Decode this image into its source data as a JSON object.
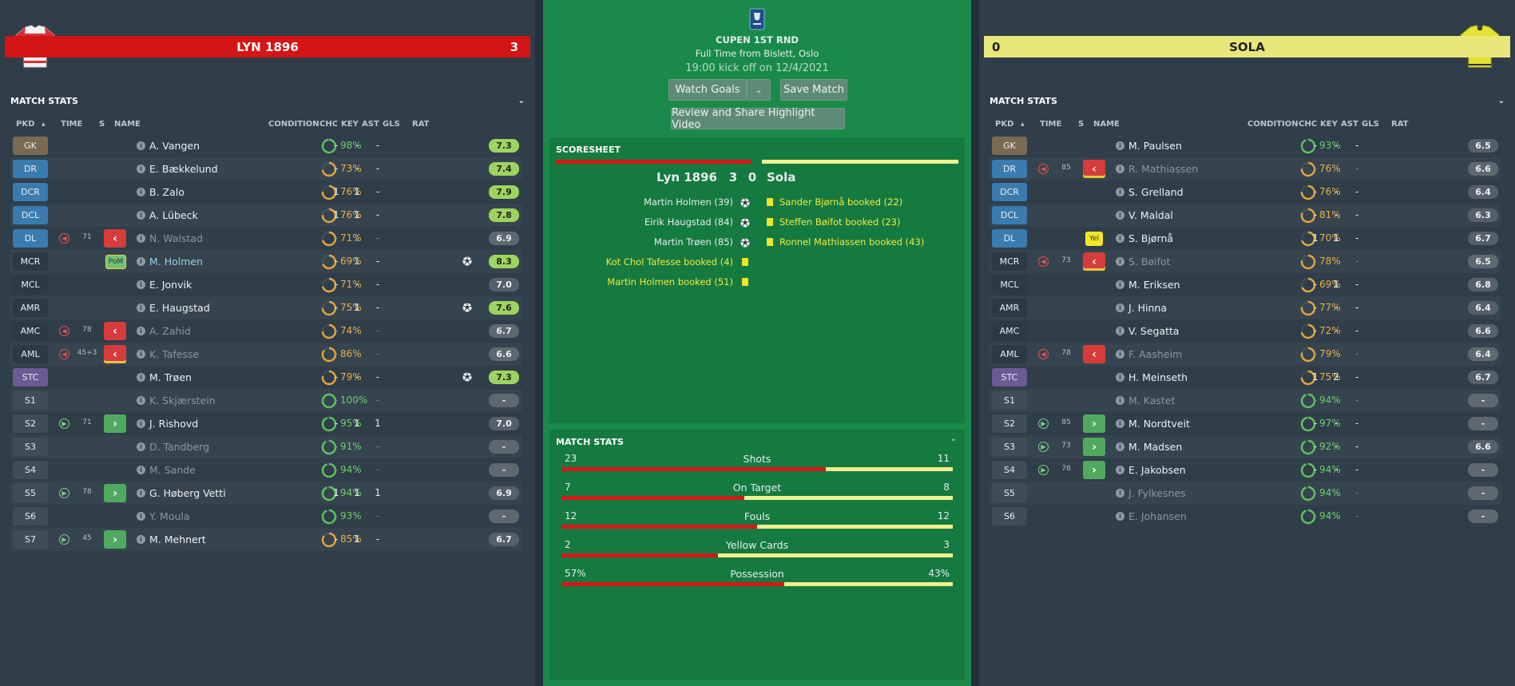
{
  "home": {
    "name": "LYN 1896",
    "score": "3",
    "bar_color": "#d31515",
    "section_title": "MATCH STATS",
    "columns": [
      "PKD",
      "TIME",
      "S",
      "NAME",
      "CONDITION",
      "CHC",
      "KEY",
      "AST",
      "GLS",
      "RAT"
    ],
    "players": [
      {
        "pos": "GK",
        "posColor": "#7b6a52",
        "name": "A. Vangen",
        "cond": "98%",
        "cp": 0.98,
        "chc": "-",
        "key": "-",
        "ast": "-",
        "gls": "",
        "goal": false,
        "rat": "7.3",
        "ratStyle": "green"
      },
      {
        "pos": "DR",
        "posColor": "#3a7bb0",
        "name": "E. Bækkelund",
        "cond": "73%",
        "cp": 0.73,
        "chc": "-",
        "key": "-",
        "ast": "-",
        "gls": "",
        "goal": false,
        "rat": "7.4",
        "ratStyle": "green"
      },
      {
        "pos": "DCR",
        "posColor": "#3a7bb0",
        "name": "B. Zalo",
        "cond": "76%",
        "cp": 0.76,
        "chc": "1",
        "key": "1",
        "ast": "-",
        "gls": "",
        "goal": false,
        "rat": "7.9",
        "ratStyle": "green"
      },
      {
        "pos": "DCL",
        "posColor": "#3a7bb0",
        "name": "A. Lübeck",
        "cond": "76%",
        "cp": 0.76,
        "chc": "1",
        "key": "1",
        "ast": "-",
        "gls": "",
        "goal": false,
        "rat": "7.8",
        "ratStyle": "green"
      },
      {
        "pos": "DL",
        "posColor": "#3a7bb0",
        "sub": "off",
        "time": "71",
        "box": "off",
        "name": "N. Walstad",
        "nameStyle": "dim",
        "cond": "71%",
        "cp": 0.71,
        "chc": "-",
        "key": "1",
        "ast": "-",
        "gls": "",
        "dimStats": true,
        "goal": false,
        "rat": "6.9",
        "ratStyle": "grey"
      },
      {
        "pos": "MCR",
        "posColor": "#2b3a44",
        "box": "pom",
        "boxText": "PoM",
        "name": "M. Holmen",
        "nameStyle": "blue",
        "cond": "69%",
        "cp": 0.69,
        "chc": "-",
        "key": "1",
        "keyBlue": true,
        "ast": "-",
        "gls": "",
        "goal": true,
        "rat": "8.3",
        "ratStyle": "green"
      },
      {
        "pos": "MCL",
        "posColor": "#2b3a44",
        "name": "E. Jonvik",
        "cond": "71%",
        "cp": 0.71,
        "chc": "-",
        "key": "-",
        "ast": "-",
        "gls": "",
        "goal": false,
        "rat": "7.0",
        "ratStyle": "dark"
      },
      {
        "pos": "AMR",
        "posColor": "#2b3a44",
        "name": "E. Haugstad",
        "cond": "75%",
        "cp": 0.75,
        "chc": "-",
        "key": "1",
        "ast": "-",
        "gls": "",
        "goal": true,
        "rat": "7.6",
        "ratStyle": "green"
      },
      {
        "pos": "AMC",
        "posColor": "#2b3a44",
        "sub": "off",
        "time": "78",
        "box": "off",
        "name": "A. Zahid",
        "nameStyle": "dim",
        "cond": "74%",
        "cp": 0.74,
        "chc": "-",
        "key": "-",
        "ast": "-",
        "gls": "",
        "dimStats": true,
        "goal": false,
        "rat": "6.7",
        "ratStyle": "grey"
      },
      {
        "pos": "AML",
        "posColor": "#2b3a44",
        "sub": "off",
        "time": "45+3",
        "box": "off",
        "boxYellow": true,
        "name": "K. Tafesse",
        "nameStyle": "dim",
        "cond": "86%",
        "cp": 0.86,
        "chc": "-",
        "key": "-",
        "ast": "-",
        "gls": "",
        "dimStats": true,
        "goal": false,
        "rat": "6.6",
        "ratStyle": "grey"
      },
      {
        "pos": "STC",
        "posColor": "#6b5a94",
        "name": "M. Trøen",
        "cond": "79%",
        "cp": 0.79,
        "chc": "-",
        "key": "-",
        "ast": "-",
        "gls": "",
        "goal": true,
        "rat": "7.3",
        "ratStyle": "green"
      },
      {
        "pos": "S1",
        "posColor": "#3f4d57",
        "name": "K. Skjærstein",
        "nameStyle": "dim",
        "cond": "100%",
        "cp": 1.0,
        "chc": "-",
        "key": "-",
        "ast": "-",
        "gls": "",
        "dimStats": true,
        "goal": false,
        "rat": "-",
        "ratStyle": "grey"
      },
      {
        "pos": "S2",
        "posColor": "#3f4d57",
        "sub": "on",
        "time": "71",
        "box": "on",
        "name": "J. Rishovd",
        "cond": "95%",
        "cp": 0.95,
        "chc": "-",
        "key": "1",
        "ast": "1",
        "gls": "",
        "goal": false,
        "rat": "7.0",
        "ratStyle": "dark"
      },
      {
        "pos": "S3",
        "posColor": "#3f4d57",
        "name": "D. Tandberg",
        "nameStyle": "dim",
        "cond": "91%",
        "cp": 0.91,
        "chc": "-",
        "key": "-",
        "ast": "-",
        "gls": "",
        "dimStats": true,
        "goal": false,
        "rat": "-",
        "ratStyle": "grey"
      },
      {
        "pos": "S4",
        "posColor": "#3f4d57",
        "name": "M. Sande",
        "nameStyle": "dim",
        "cond": "94%",
        "cp": 0.94,
        "chc": "-",
        "key": "-",
        "ast": "-",
        "gls": "",
        "dimStats": true,
        "goal": false,
        "rat": "-",
        "ratStyle": "grey"
      },
      {
        "pos": "S5",
        "posColor": "#3f4d57",
        "sub": "on",
        "time": "78",
        "box": "on",
        "name": "G. Høberg Vetti",
        "cond": "94%",
        "cp": 0.94,
        "chc": "1",
        "key": "1",
        "ast": "1",
        "gls": "",
        "goal": false,
        "rat": "6.9",
        "ratStyle": "dark"
      },
      {
        "pos": "S6",
        "posColor": "#3f4d57",
        "name": "Y. Moula",
        "nameStyle": "dim",
        "cond": "93%",
        "cp": 0.93,
        "chc": "-",
        "key": "-",
        "ast": "-",
        "gls": "",
        "dimStats": true,
        "goal": false,
        "rat": "-",
        "ratStyle": "grey"
      },
      {
        "pos": "S7",
        "posColor": "#3f4d57",
        "sub": "on",
        "time": "45",
        "box": "on",
        "name": "M. Mehnert",
        "cond": "85%",
        "cp": 0.85,
        "chc": "-",
        "key": "1",
        "ast": "-",
        "gls": "",
        "goal": false,
        "rat": "6.7",
        "ratStyle": "dark"
      }
    ]
  },
  "away": {
    "name": "SOLA",
    "score": "0",
    "bar_color": "#e9e67a",
    "section_title": "MATCH STATS",
    "columns": [
      "PKD",
      "TIME",
      "S",
      "NAME",
      "CONDITION",
      "CHC",
      "KEY",
      "AST",
      "GLS",
      "RAT"
    ],
    "players": [
      {
        "pos": "GK",
        "posColor": "#7b6a52",
        "name": "M. Paulsen",
        "cond": "93%",
        "cp": 0.93,
        "chc": "-",
        "key": "-",
        "ast": "-",
        "gls": "",
        "goal": false,
        "rat": "6.5",
        "ratStyle": "dark"
      },
      {
        "pos": "DR",
        "posColor": "#3a7bb0",
        "sub": "off",
        "time": "85",
        "box": "off",
        "boxYellow": true,
        "name": "R. Mathiassen",
        "nameStyle": "dim",
        "cond": "76%",
        "cp": 0.76,
        "chc": "-",
        "key": "-",
        "ast": "-",
        "gls": "",
        "dimStats": true,
        "goal": false,
        "rat": "6.6",
        "ratStyle": "grey"
      },
      {
        "pos": "DCR",
        "posColor": "#3a7bb0",
        "name": "S. Grelland",
        "cond": "76%",
        "cp": 0.76,
        "chc": "-",
        "key": "-",
        "ast": "-",
        "gls": "",
        "goal": false,
        "rat": "6.4",
        "ratStyle": "dark"
      },
      {
        "pos": "DCL",
        "posColor": "#3a7bb0",
        "name": "V. Maldal",
        "cond": "81%",
        "cp": 0.81,
        "chc": "-",
        "key": "-",
        "ast": "-",
        "gls": "",
        "goal": false,
        "rat": "6.3",
        "ratStyle": "dark"
      },
      {
        "pos": "DL",
        "posColor": "#3a7bb0",
        "box": "yel",
        "boxText": "Yel",
        "name": "S. Bjørnå",
        "cond": "70%",
        "cp": 0.7,
        "chc": "1",
        "key": "1",
        "ast": "-",
        "gls": "",
        "goal": false,
        "rat": "6.7",
        "ratStyle": "dark"
      },
      {
        "pos": "MCR",
        "posColor": "#2b3a44",
        "sub": "off",
        "time": "73",
        "box": "off",
        "boxYellow": true,
        "name": "S. Bøifot",
        "nameStyle": "dim",
        "cond": "78%",
        "cp": 0.78,
        "chc": "-",
        "key": "-",
        "ast": "-",
        "gls": "",
        "dimStats": true,
        "goal": false,
        "rat": "6.5",
        "ratStyle": "grey"
      },
      {
        "pos": "MCL",
        "posColor": "#2b3a44",
        "name": "M. Eriksen",
        "cond": "69%",
        "cp": 0.69,
        "chc": "-",
        "key": "1",
        "ast": "-",
        "gls": "",
        "goal": false,
        "rat": "6.8",
        "ratStyle": "dark"
      },
      {
        "pos": "AMR",
        "posColor": "#2b3a44",
        "name": "J. Hinna",
        "cond": "77%",
        "cp": 0.77,
        "chc": "-",
        "key": "-",
        "ast": "-",
        "gls": "",
        "goal": false,
        "rat": "6.4",
        "ratStyle": "dark"
      },
      {
        "pos": "AMC",
        "posColor": "#2b3a44",
        "name": "V. Segatta",
        "cond": "72%",
        "cp": 0.72,
        "chc": "-",
        "key": "-",
        "ast": "-",
        "gls": "",
        "goal": false,
        "rat": "6.6",
        "ratStyle": "dark"
      },
      {
        "pos": "AML",
        "posColor": "#2b3a44",
        "sub": "off",
        "time": "78",
        "box": "off",
        "name": "F. Aasheim",
        "nameStyle": "dim",
        "cond": "79%",
        "cp": 0.79,
        "chc": "-",
        "key": "-",
        "ast": "-",
        "gls": "",
        "dimStats": true,
        "goal": false,
        "rat": "6.4",
        "ratStyle": "grey"
      },
      {
        "pos": "STC",
        "posColor": "#6b5a94",
        "name": "H. Meinseth",
        "cond": "75%",
        "cp": 0.75,
        "chc": "1",
        "key": "2",
        "ast": "-",
        "gls": "",
        "goal": false,
        "rat": "6.7",
        "ratStyle": "dark"
      },
      {
        "pos": "S1",
        "posColor": "#3f4d57",
        "name": "M. Kastet",
        "nameStyle": "dim",
        "cond": "94%",
        "cp": 0.94,
        "chc": "-",
        "key": "-",
        "ast": "-",
        "gls": "",
        "dimStats": true,
        "goal": false,
        "rat": "-",
        "ratStyle": "grey"
      },
      {
        "pos": "S2",
        "posColor": "#3f4d57",
        "sub": "on",
        "time": "85",
        "box": "on",
        "name": "M. Nordtveit",
        "cond": "97%",
        "cp": 0.97,
        "chc": "-",
        "key": "-",
        "ast": "-",
        "gls": "",
        "goal": false,
        "rat": "-",
        "ratStyle": "grey"
      },
      {
        "pos": "S3",
        "posColor": "#3f4d57",
        "sub": "on",
        "time": "73",
        "box": "on",
        "name": "M. Madsen",
        "cond": "92%",
        "cp": 0.92,
        "chc": "-",
        "key": "-",
        "ast": "-",
        "gls": "",
        "goal": false,
        "rat": "6.6",
        "ratStyle": "dark"
      },
      {
        "pos": "S4",
        "posColor": "#3f4d57",
        "sub": "on",
        "time": "78",
        "box": "on",
        "name": "E. Jakobsen",
        "cond": "94%",
        "cp": 0.94,
        "chc": "-",
        "key": "-",
        "ast": "-",
        "gls": "",
        "goal": false,
        "rat": "-",
        "ratStyle": "grey"
      },
      {
        "pos": "S5",
        "posColor": "#3f4d57",
        "name": "J. Fylkesnes",
        "nameStyle": "dim",
        "cond": "94%",
        "cp": 0.94,
        "chc": "-",
        "key": "-",
        "ast": "-",
        "gls": "",
        "dimStats": true,
        "goal": false,
        "rat": "-",
        "ratStyle": "grey"
      },
      {
        "pos": "S6",
        "posColor": "#3f4d57",
        "name": "E. Johansen",
        "nameStyle": "dim",
        "cond": "94%",
        "cp": 0.94,
        "chc": "-",
        "key": "-",
        "ast": "-",
        "gls": "",
        "dimStats": true,
        "goal": false,
        "rat": "-",
        "ratStyle": "grey"
      }
    ]
  },
  "match": {
    "competition": "CUPEN 1ST RND",
    "status": "Full Time from Bislett, Oslo",
    "kickoff": "19:00 kick off on 12/4/2021",
    "watch_goals": "Watch Goals",
    "save_match": "Save Match",
    "review": "Review and Share Highlight Video",
    "scoresheet_title": "SCORESHEET",
    "home_name": "Lyn 1896",
    "away_name": "Sola",
    "home_score": "3",
    "away_score": "0",
    "home_events": [
      {
        "text": "Martin Holmen (39)",
        "type": "goal"
      },
      {
        "text": "Eirik Haugstad (84)",
        "type": "goal"
      },
      {
        "text": "Martin Trøen (85)",
        "type": "goal"
      },
      {
        "text": "Kot Chol Tafesse booked (4)",
        "type": "card"
      },
      {
        "text": "Martin Holmen booked (51)",
        "type": "card"
      }
    ],
    "away_events": [
      {
        "text": "Sander Bjørnå booked (22)",
        "type": "card"
      },
      {
        "text": "Steffen Bøifot booked (23)",
        "type": "card"
      },
      {
        "text": "Ronnel Mathiassen booked (43)",
        "type": "card"
      }
    ],
    "stats_title": "MATCH STATS",
    "stats": [
      {
        "name": "Shots",
        "home": "23",
        "away": "11",
        "share": 0.676
      },
      {
        "name": "On Target",
        "home": "7",
        "away": "8",
        "share": 0.467
      },
      {
        "name": "Fouls",
        "home": "12",
        "away": "12",
        "share": 0.5
      },
      {
        "name": "Yellow Cards",
        "home": "2",
        "away": "3",
        "share": 0.4
      },
      {
        "name": "Possession",
        "home": "57%",
        "away": "43%",
        "share": 0.57
      }
    ]
  }
}
